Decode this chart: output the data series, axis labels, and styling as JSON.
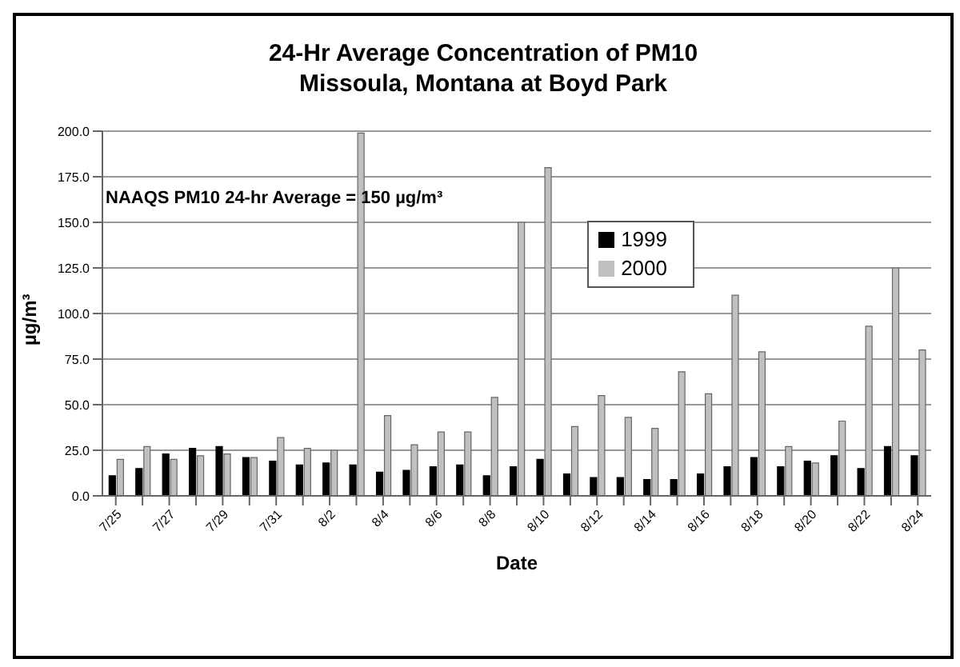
{
  "chart_data": {
    "type": "bar",
    "title": "24-Hr Average Concentration of PM10",
    "subtitle": "Missoula, Montana at Boyd Park",
    "xlabel": "Date",
    "ylabel": "µg/m³",
    "annotations": [
      "NAAQS PM10 24-hr Average = 150 µg/m³"
    ],
    "categories": [
      "7/25",
      null,
      "7/27",
      null,
      "7/29",
      null,
      "7/31",
      null,
      "8/2",
      null,
      "8/4",
      null,
      "8/6",
      null,
      "8/8",
      null,
      "8/10",
      null,
      "8/12",
      null,
      "8/14",
      null,
      "8/16",
      null,
      "8/18",
      null,
      "8/20",
      null,
      "8/22",
      null,
      "8/24"
    ],
    "series": [
      {
        "name": "1999",
        "color": "#000000",
        "values": [
          11,
          15,
          23,
          26,
          27,
          21,
          19,
          17,
          18,
          17,
          13,
          14,
          16,
          17,
          11,
          16,
          20,
          12,
          10,
          10,
          9,
          9,
          12,
          16,
          21,
          16,
          19,
          22,
          15,
          27,
          22
        ]
      },
      {
        "name": "2000",
        "color": "#c0c0c0",
        "values": [
          20,
          27,
          20,
          22,
          23,
          21,
          32,
          26,
          25,
          199,
          44,
          28,
          35,
          35,
          54,
          150,
          180,
          38,
          55,
          43,
          37,
          68,
          56,
          110,
          79,
          27,
          18,
          41,
          93,
          125,
          80
        ]
      }
    ],
    "ylim": [
      0,
      200
    ],
    "yticks": [
      {
        "value": 0,
        "label": "0.0"
      },
      {
        "value": 25,
        "label": "25.0"
      },
      {
        "value": 50,
        "label": "50.0"
      },
      {
        "value": 75,
        "label": "75.0"
      },
      {
        "value": 100,
        "label": "100.0"
      },
      {
        "value": 125,
        "label": "125.0"
      },
      {
        "value": 150,
        "label": "150.0"
      },
      {
        "value": 175,
        "label": "175.0"
      },
      {
        "value": 200,
        "label": "200.0"
      }
    ],
    "grid": "y",
    "legend": "top right"
  }
}
